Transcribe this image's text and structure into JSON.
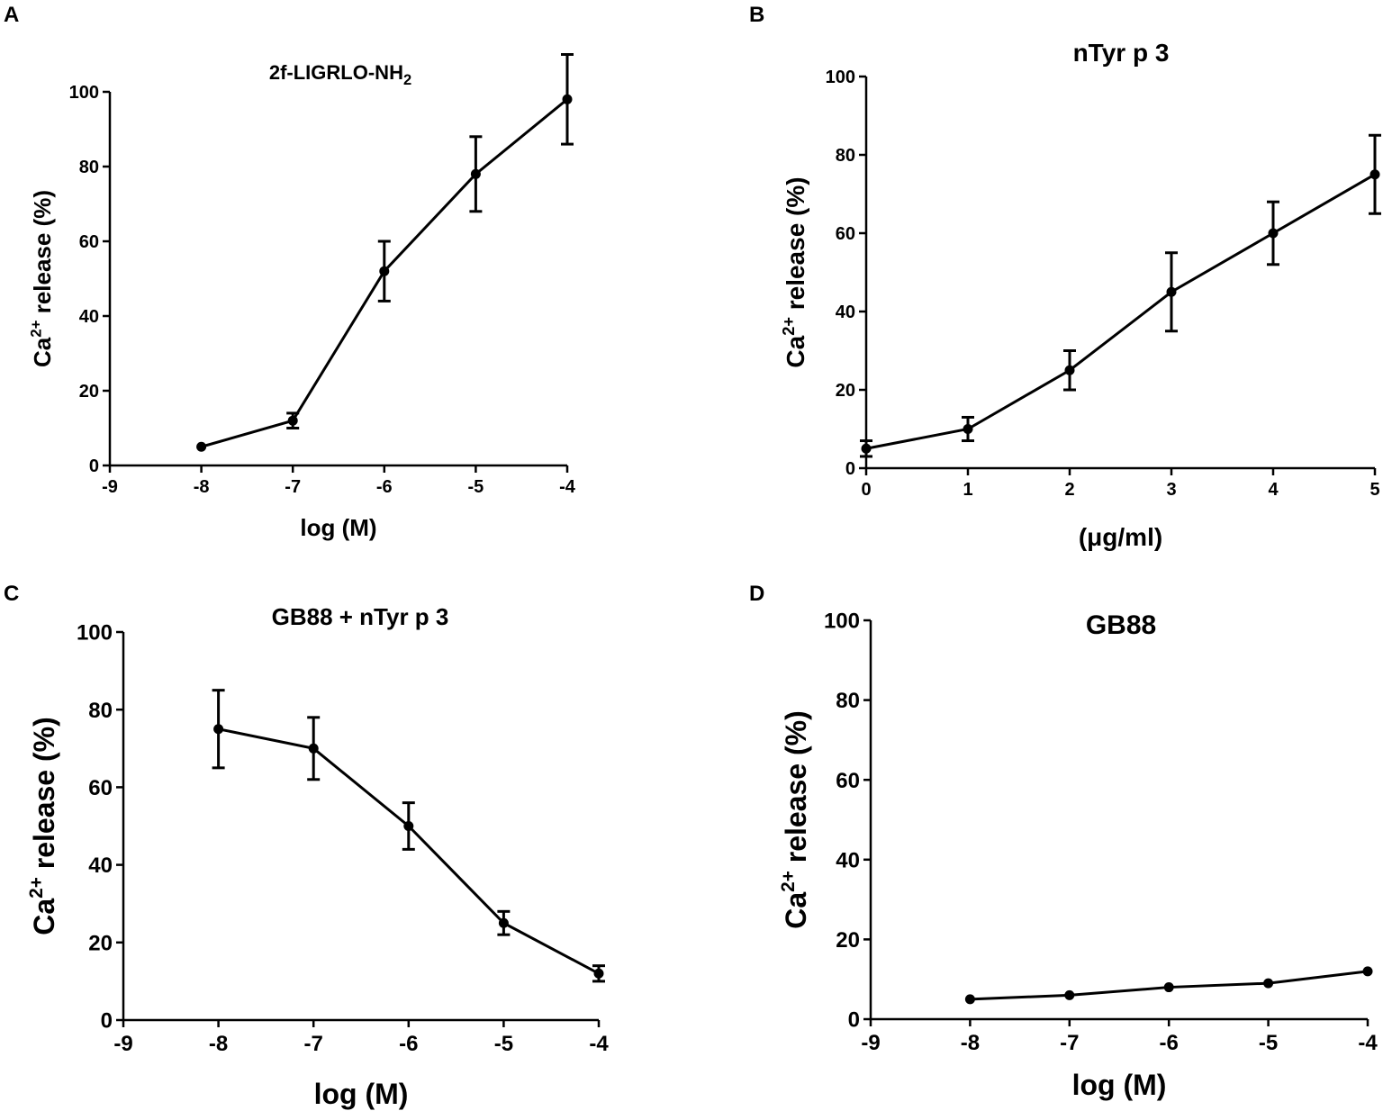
{
  "colors": {
    "ink": "#000000",
    "background": "#ffffff"
  },
  "chart_data": [
    {
      "panel": "A",
      "type": "line",
      "title": "2f-LIGRLO-NH",
      "title_sub": "2",
      "ylabel_main": "Ca",
      "ylabel_sup": "2+",
      "ylabel_rest": " release (%)",
      "xlabel": "log (M)",
      "xlim": [
        -9,
        -4
      ],
      "ylim": [
        0,
        100
      ],
      "xticks": [
        -9,
        -8,
        -7,
        -6,
        -5,
        -4
      ],
      "yticks": [
        0,
        20,
        40,
        60,
        80,
        100
      ],
      "x": [
        -8,
        -7,
        -6,
        -5,
        -4
      ],
      "y": [
        5,
        12,
        52,
        78,
        98
      ],
      "err": [
        0,
        2,
        8,
        10,
        12
      ]
    },
    {
      "panel": "B",
      "type": "line",
      "title": "nTyr p 3",
      "title_sub": "",
      "ylabel_main": "Ca",
      "ylabel_sup": "2+",
      "ylabel_rest": " release (%)",
      "xlabel": "(μg/ml)",
      "xlim": [
        0,
        5
      ],
      "ylim": [
        0,
        100
      ],
      "xticks": [
        0,
        1,
        2,
        3,
        4,
        5
      ],
      "yticks": [
        0,
        20,
        40,
        60,
        80,
        100
      ],
      "x": [
        0,
        1,
        2,
        3,
        4,
        5
      ],
      "y": [
        5,
        10,
        25,
        45,
        60,
        75
      ],
      "err": [
        2,
        3,
        5,
        10,
        8,
        10
      ]
    },
    {
      "panel": "C",
      "type": "line",
      "title": "GB88 + nTyr p 3",
      "title_sub": "",
      "ylabel_main": "Ca",
      "ylabel_sup": "2+",
      "ylabel_rest": " release (%)",
      "xlabel": "log (M)",
      "xlim": [
        -9,
        -4
      ],
      "ylim": [
        0,
        100
      ],
      "xticks": [
        -9,
        -8,
        -7,
        -6,
        -5,
        -4
      ],
      "yticks": [
        0,
        20,
        40,
        60,
        80,
        100
      ],
      "x": [
        -8,
        -7,
        -6,
        -5,
        -4
      ],
      "y": [
        75,
        70,
        50,
        25,
        12
      ],
      "err": [
        10,
        8,
        6,
        3,
        2
      ]
    },
    {
      "panel": "D",
      "type": "line",
      "title": "GB88",
      "title_sub": "",
      "ylabel_main": "Ca",
      "ylabel_sup": "2+",
      "ylabel_rest": " release (%)",
      "xlabel": "log (M)",
      "xlim": [
        -9,
        -4
      ],
      "ylim": [
        0,
        100
      ],
      "xticks": [
        -9,
        -8,
        -7,
        -6,
        -5,
        -4
      ],
      "yticks": [
        0,
        20,
        40,
        60,
        80,
        100
      ],
      "x": [
        -8,
        -7,
        -6,
        -5,
        -4
      ],
      "y": [
        5,
        6,
        8,
        9,
        12
      ],
      "err": [
        0,
        0,
        0,
        0,
        0
      ]
    }
  ]
}
